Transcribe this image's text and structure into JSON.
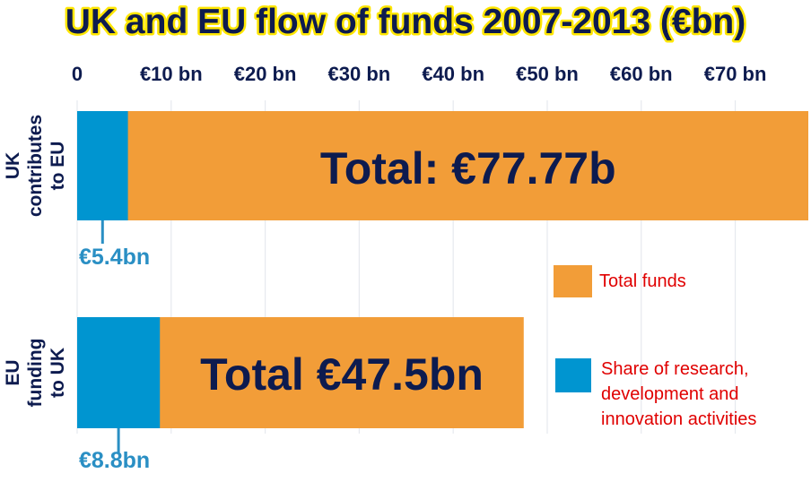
{
  "chart_data": {
    "type": "bar",
    "orientation": "horizontal",
    "stacked": true,
    "title": "UK and EU flow of funds 2007-2013 (€bn)",
    "x_ticks": [
      {
        "value": 0,
        "label": "0"
      },
      {
        "value": 10,
        "label": "€10 bn"
      },
      {
        "value": 20,
        "label": "€20 bn"
      },
      {
        "value": 30,
        "label": "€30 bn"
      },
      {
        "value": 40,
        "label": "€40 bn"
      },
      {
        "value": 50,
        "label": "€50 bn"
      },
      {
        "value": 60,
        "label": "€60 bn"
      },
      {
        "value": 70,
        "label": "€70 bn"
      }
    ],
    "xlim": [
      0,
      77.77
    ],
    "grid": true,
    "categories": [
      [
        "UK",
        "contributes",
        "to EU"
      ],
      [
        "EU",
        "funding",
        "to UK"
      ]
    ],
    "bars": [
      {
        "total": 77.77,
        "share": 5.4,
        "total_label": "Total: €77.77b",
        "share_label": "€5.4bn"
      },
      {
        "total": 47.5,
        "share": 8.8,
        "total_label": "Total €47.5bn",
        "share_label": "€8.8bn"
      }
    ],
    "series": [
      {
        "name": "Total funds",
        "color": "#f29d38"
      },
      {
        "name": "Share of research, development and innovation activities",
        "color": "#0095d0"
      }
    ],
    "legend": {
      "placement": "right",
      "items": [
        {
          "lines": [
            "Total funds"
          ],
          "color": "#f29d38"
        },
        {
          "lines": [
            "Share of research,",
            "development and",
            "innovation activities"
          ],
          "color": "#0095d0"
        }
      ]
    }
  }
}
